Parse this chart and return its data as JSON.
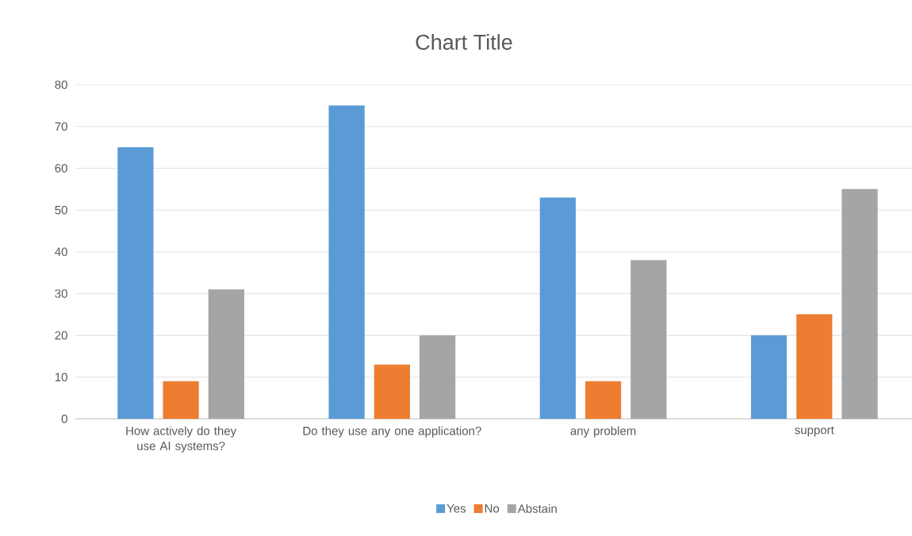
{
  "chart_data": {
    "type": "bar",
    "title": "Chart Title",
    "categories": [
      "How actively do they use AI systems?",
      "Do they use any one application?",
      "any problem",
      "support"
    ],
    "series": [
      {
        "name": "Yes",
        "color": "#5b9bd5",
        "values": [
          65,
          75,
          53,
          20
        ]
      },
      {
        "name": "No",
        "color": "#ed7d31",
        "values": [
          9,
          13,
          9,
          25
        ]
      },
      {
        "name": "Abstain",
        "color": "#a5a5a5",
        "values": [
          31,
          20,
          38,
          55
        ]
      }
    ],
    "ylim": [
      0,
      80
    ],
    "yticks": [
      0,
      10,
      20,
      30,
      40,
      50,
      60,
      70,
      80
    ],
    "grid": "y",
    "legend": "bottom"
  }
}
